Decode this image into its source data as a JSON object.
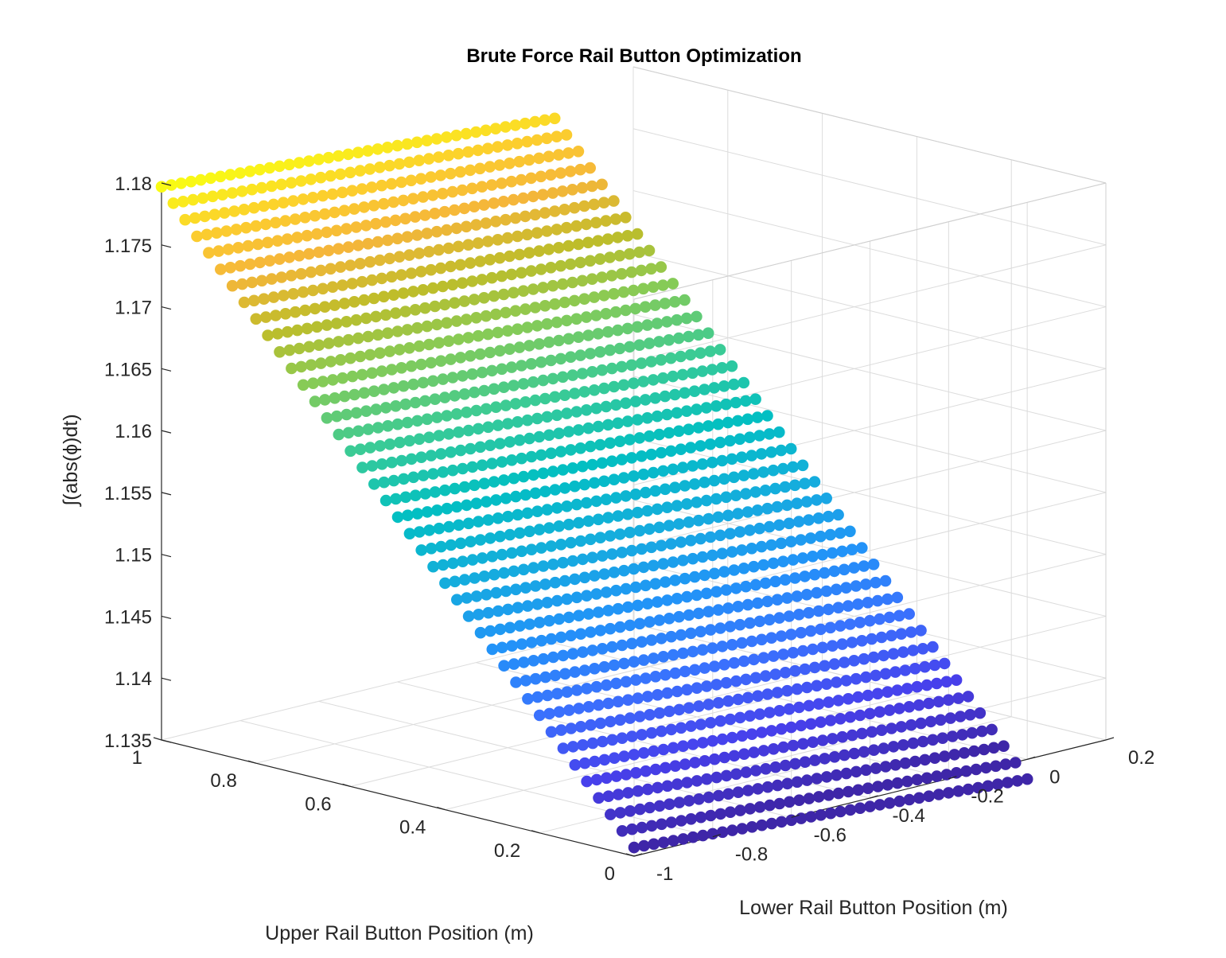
{
  "chart_data": {
    "type": "scatter",
    "title": "Brute Force Rail Button Optimization",
    "xlabel": "Upper Rail Button Position (m)",
    "ylabel": "Lower Rail Button Position (m)",
    "zlabel": "∫(abs(ϕ)dt)",
    "xlim": [
      0,
      1
    ],
    "ylim": [
      -1,
      0.2
    ],
    "zlim": [
      1.135,
      1.18
    ],
    "x_ticks": [
      "0",
      "0.2",
      "0.4",
      "0.6",
      "0.8",
      "1"
    ],
    "y_ticks": [
      "-1",
      "-0.8",
      "-0.6",
      "-0.4",
      "-0.2",
      "0",
      "0.2"
    ],
    "z_ticks": [
      "1.135",
      "1.14",
      "1.145",
      "1.15",
      "1.155",
      "1.16",
      "1.165",
      "1.17",
      "1.175",
      "1.18"
    ],
    "grid": true,
    "colormap": "parula",
    "grid_points": {
      "upper_position_range": [
        0,
        1
      ],
      "upper_position_count": 41,
      "lower_position_range": [
        -1,
        0
      ],
      "lower_position_count": 41
    },
    "series": [
      {
        "surface": "z ≈ 1.1357 + 0.044 × upper position − 0.0023 × (lower position + 1)",
        "min_z": 1.1357,
        "max_z": 1.1797
      }
    ]
  }
}
